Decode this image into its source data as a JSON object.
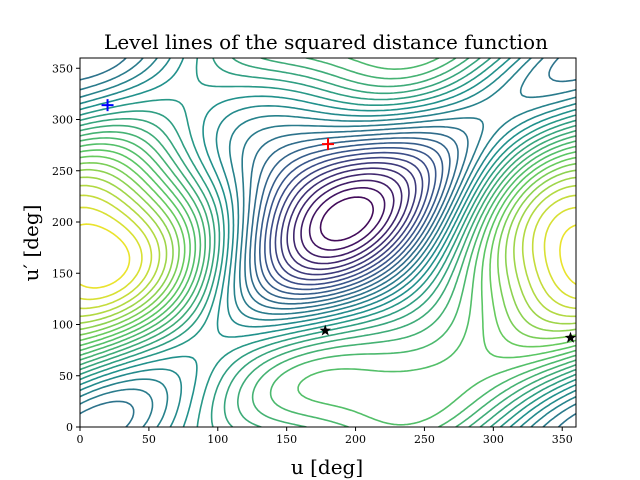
{
  "chart_data": {
    "type": "contour",
    "title": "Level lines of the squared distance function",
    "xlabel": "u [deg]",
    "ylabel": "u′ [deg]",
    "xlim": [
      0,
      360
    ],
    "ylim": [
      0,
      360
    ],
    "xticks": [
      0,
      50,
      100,
      150,
      200,
      250,
      300,
      350
    ],
    "yticks": [
      0,
      50,
      100,
      150,
      200,
      250,
      300,
      350
    ],
    "grid": false,
    "colormap": [
      "#440154",
      "#3b528b",
      "#21918c",
      "#5ec962",
      "#fde725"
    ],
    "markers": [
      {
        "name": "plus",
        "x": 20,
        "y": 314,
        "color": "#0000ff",
        "shape": "plus"
      },
      {
        "name": "plus",
        "x": 180,
        "y": 276,
        "color": "#ff0000",
        "shape": "plus"
      },
      {
        "name": "star",
        "x": 178,
        "y": 94,
        "color": "#000000",
        "shape": "star"
      },
      {
        "name": "star",
        "x": 356,
        "y": 87,
        "color": "#000000",
        "shape": "star"
      }
    ]
  }
}
